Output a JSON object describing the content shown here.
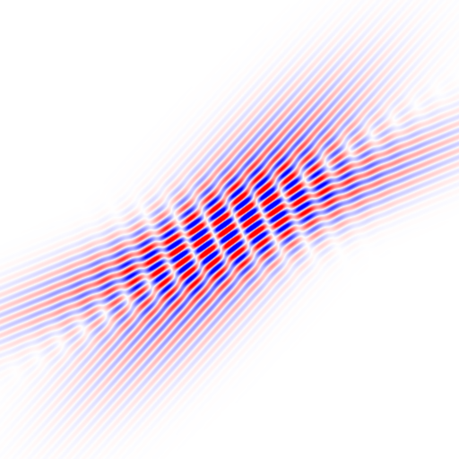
{
  "colors": {
    "background": "#ffffff",
    "positive": "#ff0000",
    "negative": "#0000ff"
  }
}
